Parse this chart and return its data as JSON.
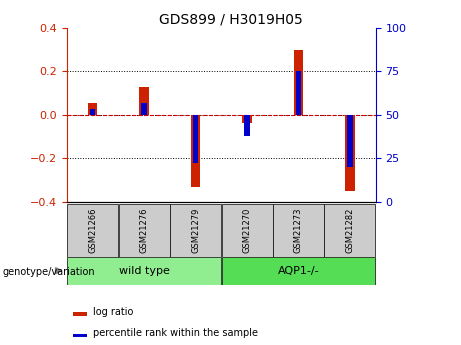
{
  "title": "GDS899 / H3019H05",
  "samples": [
    "GSM21266",
    "GSM21276",
    "GSM21279",
    "GSM21270",
    "GSM21273",
    "GSM21282"
  ],
  "log_ratios": [
    0.055,
    0.125,
    -0.33,
    -0.04,
    0.295,
    -0.35
  ],
  "percentile_ranks": [
    53,
    57,
    22,
    38,
    75,
    20
  ],
  "groups": [
    {
      "label": "wild type",
      "color": "#90EE90",
      "start": 0,
      "end": 3
    },
    {
      "label": "AQP1-/-",
      "color": "#55DD55",
      "start": 3,
      "end": 6
    }
  ],
  "ylim_left": [
    -0.4,
    0.4
  ],
  "ylim_right": [
    0,
    100
  ],
  "yticks_left": [
    -0.4,
    -0.2,
    0.0,
    0.2,
    0.4
  ],
  "yticks_right": [
    0,
    25,
    50,
    75,
    100
  ],
  "bar_color_red": "#CC2200",
  "bar_color_blue": "#0000CC",
  "red_bar_width": 0.18,
  "blue_bar_width": 0.1,
  "group_box_color": "#CCCCCC",
  "zero_line_color": "#CC0000",
  "legend_red_label": "log ratio",
  "legend_blue_label": "percentile rank within the sample",
  "title_fontsize": 10,
  "tick_fontsize": 8,
  "sample_fontsize": 6,
  "group_fontsize": 8,
  "legend_fontsize": 7,
  "genotype_fontsize": 7
}
